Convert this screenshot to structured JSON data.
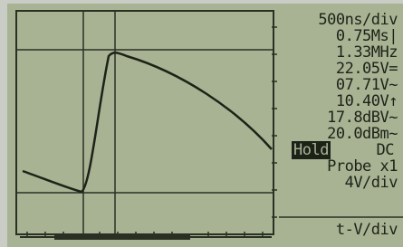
{
  "readouts": [
    "500ns/div",
    "0.75Ms|",
    "1.33MHz",
    "22.05V=",
    "07.71V~",
    "10.40V↑",
    "17.8dBV~",
    "20.0dBm~"
  ],
  "status": {
    "hold": "Hold",
    "coupling": "DC",
    "probe": "Probe x1",
    "vdiv": "4V/div"
  },
  "menu": "t-V/div"
}
